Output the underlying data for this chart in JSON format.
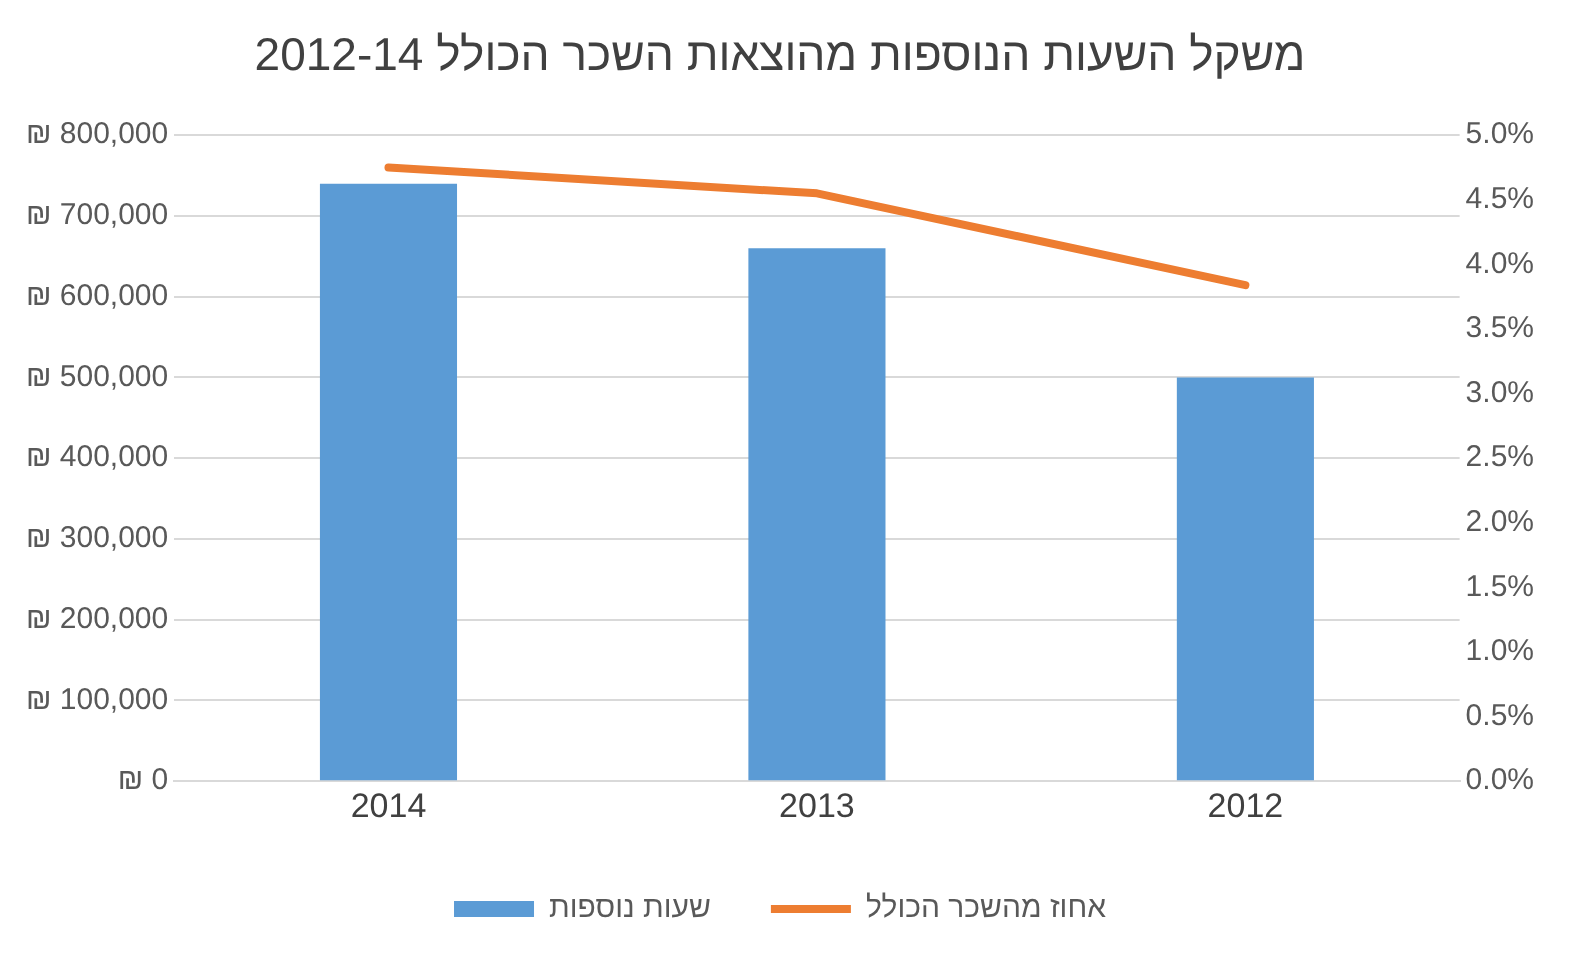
{
  "chart_data": {
    "type": "bar",
    "title": "משקל השעות הנוספות מהוצאות השכר הכולל 2012-14",
    "categories": [
      "2014",
      "2013",
      "2012"
    ],
    "series": [
      {
        "name": "שעות נוספות",
        "color": "#5b9bd5",
        "values": [
          740000,
          660000,
          500000
        ]
      },
      {
        "name": "אחוז מהשכר הכולל",
        "type": "line",
        "axis": "y2",
        "color": "#ed7d31",
        "values": [
          4.75,
          4.55,
          3.84
        ]
      }
    ],
    "ylim": [
      0,
      800000
    ],
    "yticks": [
      {
        "value": 0,
        "label": "₪ 0"
      },
      {
        "value": 100000,
        "label": "₪ 100,000"
      },
      {
        "value": 200000,
        "label": "₪ 200,000"
      },
      {
        "value": 300000,
        "label": "₪ 300,000"
      },
      {
        "value": 400000,
        "label": "₪ 400,000"
      },
      {
        "value": 500000,
        "label": "₪ 500,000"
      },
      {
        "value": 600000,
        "label": "₪ 600,000"
      },
      {
        "value": 700000,
        "label": "₪ 700,000"
      },
      {
        "value": 800000,
        "label": "₪ 800,000"
      }
    ],
    "y2lim": [
      0,
      5
    ],
    "y2ticks": [
      {
        "value": 0,
        "label": "0.0%"
      },
      {
        "value": 0.5,
        "label": "0.5%"
      },
      {
        "value": 1,
        "label": "1.0%"
      },
      {
        "value": 1.5,
        "label": "1.5%"
      },
      {
        "value": 2,
        "label": "2.0%"
      },
      {
        "value": 2.5,
        "label": "2.5%"
      },
      {
        "value": 3,
        "label": "3.0%"
      },
      {
        "value": 3.5,
        "label": "3.5%"
      },
      {
        "value": 4,
        "label": "4.0%"
      },
      {
        "value": 4.5,
        "label": "4.5%"
      },
      {
        "value": 5,
        "label": "5.0%"
      }
    ],
    "grid": "y",
    "legend": "bottom",
    "marker": "none"
  }
}
